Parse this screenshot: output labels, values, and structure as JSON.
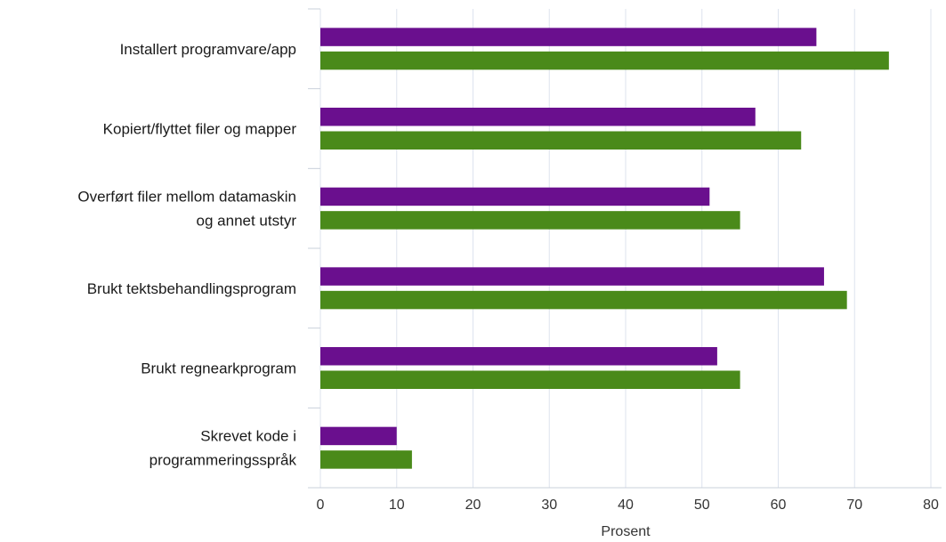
{
  "chart_data": {
    "type": "bar",
    "orientation": "horizontal",
    "categories": [
      [
        "Installert programvare/app"
      ],
      [
        "Kopiert/flyttet filer og mapper"
      ],
      [
        "Overført filer mellom datamaskin",
        "og annet utstyr"
      ],
      [
        "Brukt tektsbehandlingsprogram"
      ],
      [
        "Brukt regnearkprogram"
      ],
      [
        "Skrevet kode i",
        "programmeringsspråk"
      ]
    ],
    "series": [
      {
        "color": "#6a0f8e",
        "values": [
          65,
          57,
          51,
          66,
          52,
          10
        ]
      },
      {
        "color": "#4a8a1a",
        "values": [
          74.5,
          63,
          55,
          69,
          55,
          12
        ]
      }
    ],
    "xlabel": "Prosent",
    "xlim": [
      0,
      80
    ],
    "xticks": [
      0,
      10,
      20,
      30,
      40,
      50,
      60,
      70,
      80
    ],
    "grid": true
  }
}
